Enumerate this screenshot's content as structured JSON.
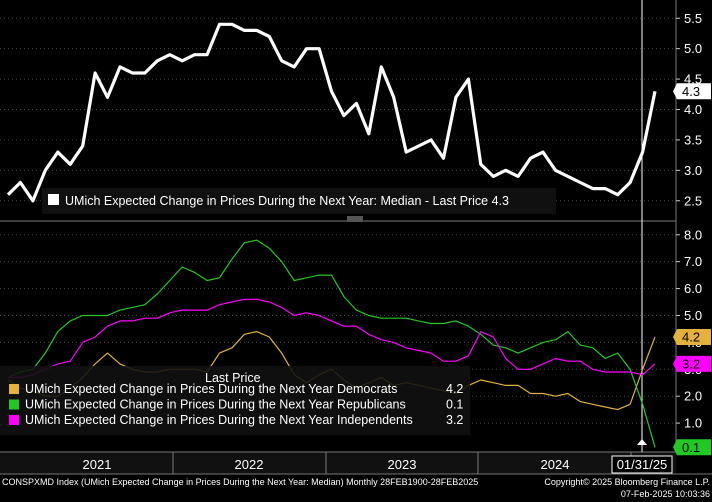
{
  "chart_data": {
    "type": "line",
    "top_panel": {
      "title": "UMich Expected Change in Prices During the Next Year: Median - Last Price 4.3",
      "ylim": [
        2.2,
        5.8
      ],
      "yticks": [
        "2.5",
        "3.0",
        "3.5",
        "4.0",
        "4.5",
        "5.0",
        "5.5"
      ],
      "last_value_label": "4.3",
      "series": [
        {
          "name": "UMich Expected Change in Prices During the Next Year: Median",
          "color": "#ffffff",
          "values": [
            2.6,
            2.8,
            2.5,
            3.0,
            3.3,
            3.1,
            3.4,
            4.6,
            4.2,
            4.7,
            4.6,
            4.6,
            4.8,
            4.9,
            4.8,
            4.9,
            4.9,
            5.4,
            5.4,
            5.3,
            5.3,
            5.2,
            4.8,
            4.7,
            5.0,
            5.0,
            4.3,
            3.9,
            4.1,
            3.6,
            4.7,
            4.2,
            3.3,
            3.4,
            3.5,
            3.2,
            4.2,
            4.5,
            3.1,
            2.9,
            3.0,
            2.9,
            3.2,
            3.3,
            3.0,
            2.9,
            2.8,
            2.7,
            2.7,
            2.6,
            2.8,
            3.3,
            4.3
          ]
        }
      ]
    },
    "bottom_panel": {
      "ylim": [
        0.0,
        8.4
      ],
      "yticks": [
        "1.0",
        "2.0",
        "3.0",
        "4.0",
        "5.0",
        "6.0",
        "7.0",
        "8.0"
      ],
      "legend_title": "Last Price",
      "series": [
        {
          "name": "UMich Expected Change in Prices During the Next Year Democrats",
          "last": "4.2",
          "color": "#e3b13c",
          "values": [
            2.6,
            2.3,
            2.2,
            2.0,
            2.0,
            2.3,
            2.7,
            3.2,
            3.6,
            3.2,
            3.0,
            2.9,
            2.9,
            3.0,
            3.0,
            3.0,
            2.9,
            3.6,
            3.8,
            4.3,
            4.4,
            4.2,
            3.6,
            2.8,
            2.5,
            2.8,
            3.0,
            2.6,
            2.3,
            2.5,
            2.7,
            2.4,
            2.5,
            2.4,
            2.3,
            2.2,
            2.1,
            2.4,
            2.6,
            2.5,
            2.4,
            2.4,
            2.1,
            2.1,
            2.0,
            2.1,
            1.8,
            1.7,
            1.6,
            1.5,
            1.7,
            3.0,
            4.2
          ]
        },
        {
          "name": "UMich Expected Change in Prices During the Next Year Republicans",
          "last": "0.1",
          "color": "#22c922",
          "values": [
            2.7,
            2.9,
            3.0,
            3.6,
            4.4,
            4.8,
            5.0,
            5.0,
            5.0,
            5.2,
            5.3,
            5.4,
            5.8,
            6.3,
            6.8,
            6.6,
            6.3,
            6.4,
            7.1,
            7.7,
            7.8,
            7.5,
            7.0,
            6.3,
            6.4,
            6.5,
            6.5,
            5.7,
            5.2,
            5.0,
            4.9,
            4.9,
            4.9,
            4.8,
            4.7,
            4.7,
            4.8,
            4.6,
            4.3,
            3.9,
            3.8,
            3.6,
            3.8,
            4.0,
            4.1,
            4.4,
            3.9,
            3.8,
            3.4,
            3.6,
            3.0,
            1.7,
            0.1
          ]
        },
        {
          "name": "UMich Expected Change in Prices During the Next Year Independents",
          "last": "3.2",
          "color": "#ff00ff",
          "values": [
            2.7,
            2.7,
            2.8,
            3.0,
            3.2,
            3.3,
            4.0,
            4.2,
            4.6,
            4.8,
            4.8,
            4.9,
            4.9,
            5.1,
            5.2,
            5.2,
            5.2,
            5.4,
            5.5,
            5.6,
            5.6,
            5.5,
            5.3,
            5.0,
            5.1,
            5.0,
            4.8,
            4.6,
            4.6,
            4.3,
            4.1,
            4.0,
            3.8,
            3.7,
            3.6,
            3.3,
            3.3,
            3.5,
            4.4,
            4.2,
            3.4,
            3.0,
            3.0,
            3.2,
            3.4,
            3.3,
            3.3,
            3.0,
            2.9,
            2.9,
            2.9,
            2.8,
            3.2
          ]
        }
      ]
    },
    "x_axis": {
      "year_labels": [
        "2021",
        "2022",
        "2023",
        "2024"
      ],
      "current_date_label": "01/31/25"
    }
  },
  "footer": {
    "left": "CONSPXMD Index (UMich Expected Change in Prices During the Next Year: Median)  Monthly 28FEB1900-28FEB2025",
    "right_line1": "Copyright© 2025 Bloomberg Finance L.P.",
    "right_line2": "07-Feb-2025 10:03:36"
  }
}
